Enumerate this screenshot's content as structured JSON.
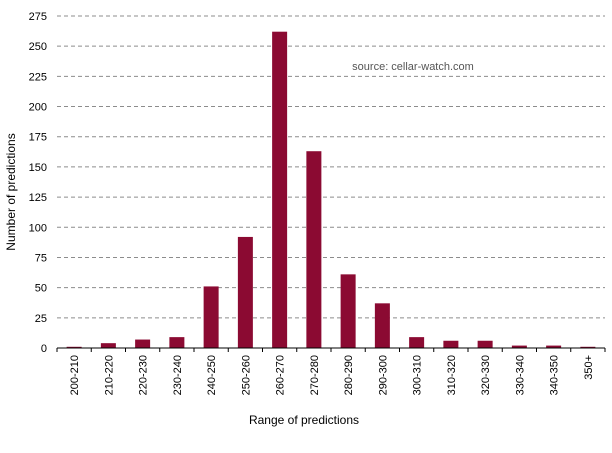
{
  "chart_data": {
    "type": "bar",
    "categories": [
      "200-210",
      "210-220",
      "220-230",
      "230-240",
      "240-250",
      "250-260",
      "260-270",
      "270-280",
      "280-290",
      "290-300",
      "300-310",
      "310-320",
      "320-330",
      "330-340",
      "340-350",
      "350+"
    ],
    "values": [
      1,
      4,
      7,
      9,
      51,
      92,
      262,
      163,
      61,
      37,
      9,
      6,
      6,
      2,
      2,
      1
    ],
    "xlabel": "Range of predictions",
    "ylabel": "Number of predictions",
    "ylim": [
      0,
      275
    ],
    "yticks": [
      0,
      25,
      50,
      75,
      100,
      125,
      150,
      175,
      200,
      225,
      250,
      275
    ],
    "annotation": "source: cellar-watch.com",
    "grid": true,
    "bar_color": "#8b0a32"
  }
}
